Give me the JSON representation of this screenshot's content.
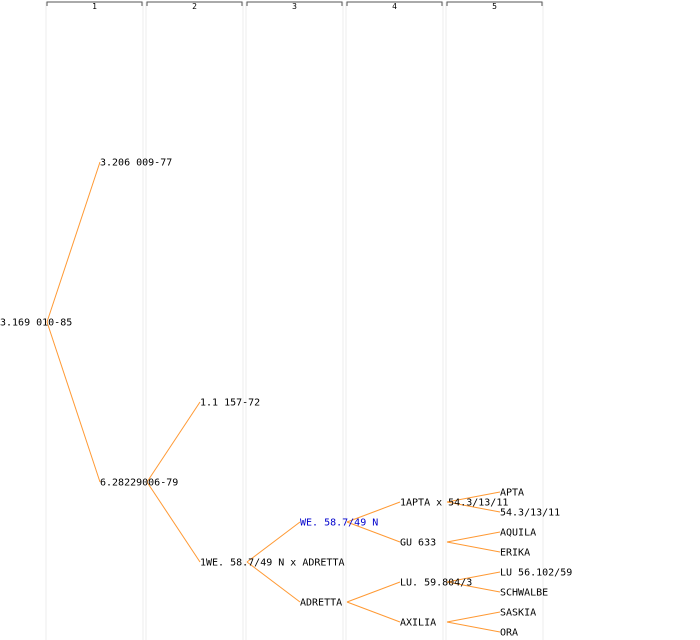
{
  "columns": [
    "1",
    "2",
    "3",
    "4",
    "5"
  ],
  "edge_color": "#ff9933",
  "highlight_color": "#0000cc",
  "nodes": [
    {
      "id": "n0",
      "gen": 0,
      "label": "3.169 010-85"
    },
    {
      "id": "n1",
      "gen": 1,
      "label": "3.206 009-77"
    },
    {
      "id": "n2",
      "gen": 1,
      "label": "6.28229006-79"
    },
    {
      "id": "n3",
      "gen": 2,
      "label": "1.1 157-72"
    },
    {
      "id": "n4",
      "gen": 2,
      "label": "1WE. 58.7/49 N x ADRETTA"
    },
    {
      "id": "n5",
      "gen": 3,
      "label": "WE. 58.7/49 N",
      "highlight": true
    },
    {
      "id": "n6",
      "gen": 3,
      "label": "ADRETTA"
    },
    {
      "id": "n7",
      "gen": 4,
      "label": "1APTA x 54.3/13/11"
    },
    {
      "id": "n8",
      "gen": 4,
      "label": "GU 633"
    },
    {
      "id": "n9",
      "gen": 4,
      "label": "LU. 59.804/3"
    },
    {
      "id": "n10",
      "gen": 4,
      "label": "AXILIA"
    },
    {
      "id": "n11",
      "gen": 5,
      "label": "APTA"
    },
    {
      "id": "n12",
      "gen": 5,
      "label": "54.3/13/11"
    },
    {
      "id": "n13",
      "gen": 5,
      "label": "AQUILA"
    },
    {
      "id": "n14",
      "gen": 5,
      "label": "ERIKA"
    },
    {
      "id": "n15",
      "gen": 5,
      "label": "LU 56.102/59"
    },
    {
      "id": "n16",
      "gen": 5,
      "label": "SCHWALBE"
    },
    {
      "id": "n17",
      "gen": 5,
      "label": "SASKIA"
    },
    {
      "id": "n18",
      "gen": 5,
      "label": "ORA"
    }
  ],
  "edges": [
    [
      "n0",
      "n1"
    ],
    [
      "n0",
      "n2"
    ],
    [
      "n2",
      "n3"
    ],
    [
      "n2",
      "n4"
    ],
    [
      "n4",
      "n5"
    ],
    [
      "n4",
      "n6"
    ],
    [
      "n5",
      "n7"
    ],
    [
      "n5",
      "n8"
    ],
    [
      "n6",
      "n9"
    ],
    [
      "n6",
      "n10"
    ],
    [
      "n7",
      "n11"
    ],
    [
      "n7",
      "n12"
    ],
    [
      "n8",
      "n13"
    ],
    [
      "n8",
      "n14"
    ],
    [
      "n9",
      "n15"
    ],
    [
      "n9",
      "n16"
    ],
    [
      "n10",
      "n17"
    ],
    [
      "n10",
      "n18"
    ]
  ]
}
